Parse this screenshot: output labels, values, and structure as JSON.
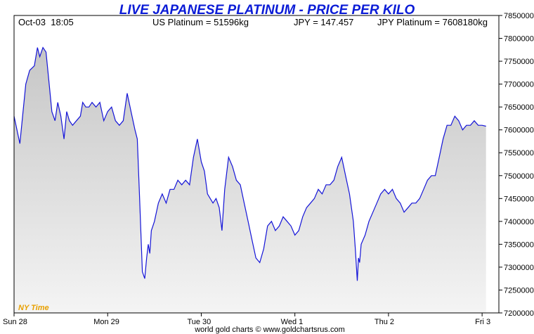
{
  "colors": {
    "title": "#0a1bd6",
    "line": "#1414d8",
    "ny_label": "#e8a000",
    "fill_top": "#c6c6c6",
    "fill_bottom": "#f4f4f4",
    "frame": "#000000"
  },
  "header": {
    "title": "LIVE JAPANESE PLATINUM - PRICE PER KILO",
    "datetime": "Oct-03  18:05",
    "us_platinum": "US Platinum = 51596kg",
    "jpy_rate": "JPY = 147.457",
    "jpy_platinum": "JPY Platinum = 7608180kg"
  },
  "footer": {
    "credit": "world gold charts © www.goldchartsrus.com",
    "ny_time": "NY Time"
  },
  "chart_data": {
    "type": "line",
    "title": "LIVE JAPANESE PLATINUM - PRICE PER KILO",
    "xlabel": "",
    "ylabel": "",
    "ylim": [
      7200000,
      7850000
    ],
    "xlim": [
      0,
      124.3
    ],
    "grid": false,
    "y_ticks": [
      7200000,
      7250000,
      7300000,
      7350000,
      7400000,
      7450000,
      7500000,
      7550000,
      7600000,
      7650000,
      7700000,
      7750000,
      7800000,
      7850000
    ],
    "y_tick_labels": [
      "7200000",
      "7250000",
      "7300000",
      "7350000",
      "7400000",
      "7450000",
      "7500000",
      "7550000",
      "7600000",
      "7650000",
      "7700000",
      "7750000",
      "7800000",
      "7850000"
    ],
    "x_ticks": [
      0,
      24,
      48,
      72,
      96,
      120
    ],
    "x_tick_labels": [
      "Sun 28",
      "Mon 29",
      "Tue 30",
      "Wed 1",
      "Thu 2",
      "Fri 3"
    ],
    "series": [
      {
        "x": [
          0,
          1.5,
          2.3,
          3,
          4,
          5.2,
          6,
          6.6,
          7.4,
          8.2,
          9,
          9.7,
          10.5,
          11.2,
          12,
          12.8,
          13.5,
          14.2,
          15,
          16,
          17,
          17.6,
          18.4,
          19.2,
          20,
          21,
          22,
          23,
          24,
          25,
          26,
          27,
          28,
          29,
          30,
          31,
          31.6,
          32.2,
          32.9,
          33.5,
          34,
          34.4,
          34.8,
          35.2,
          35.6,
          36,
          37,
          38,
          39,
          40,
          41,
          42,
          43,
          44,
          45,
          46,
          47,
          48,
          48.8,
          49.6,
          50.3,
          51,
          51.8,
          52.6,
          53.3,
          54,
          55,
          56,
          57,
          58,
          59,
          60,
          61,
          62,
          63,
          64,
          65,
          66,
          67,
          68,
          69,
          70,
          71,
          72,
          73,
          74,
          75,
          76,
          77,
          78,
          79,
          80,
          81,
          82,
          83,
          84,
          85,
          86,
          87,
          87.5,
          88,
          88.3,
          88.6,
          89,
          89.5,
          90,
          91,
          92,
          93,
          94,
          95,
          96,
          97,
          98,
          99,
          100,
          101,
          102,
          103,
          104,
          105,
          106,
          107,
          108,
          109,
          110,
          111,
          112,
          113,
          114,
          115,
          116,
          117,
          118,
          119,
          120,
          121
        ],
        "values": [
          7630000,
          7570000,
          7640000,
          7700000,
          7730000,
          7740000,
          7780000,
          7760000,
          7780000,
          7770000,
          7700000,
          7640000,
          7620000,
          7660000,
          7630000,
          7580000,
          7640000,
          7620000,
          7610000,
          7620000,
          7630000,
          7660000,
          7650000,
          7650000,
          7660000,
          7650000,
          7660000,
          7620000,
          7640000,
          7650000,
          7620000,
          7610000,
          7620000,
          7680000,
          7640000,
          7600000,
          7580000,
          7450000,
          7290000,
          7275000,
          7320000,
          7350000,
          7330000,
          7380000,
          7390000,
          7400000,
          7440000,
          7460000,
          7440000,
          7470000,
          7470000,
          7490000,
          7480000,
          7490000,
          7480000,
          7540000,
          7580000,
          7530000,
          7510000,
          7460000,
          7450000,
          7440000,
          7450000,
          7430000,
          7380000,
          7470000,
          7540000,
          7520000,
          7490000,
          7480000,
          7440000,
          7400000,
          7360000,
          7320000,
          7310000,
          7340000,
          7390000,
          7400000,
          7380000,
          7390000,
          7410000,
          7400000,
          7390000,
          7370000,
          7380000,
          7410000,
          7430000,
          7440000,
          7450000,
          7470000,
          7460000,
          7480000,
          7480000,
          7490000,
          7520000,
          7540000,
          7500000,
          7460000,
          7400000,
          7340000,
          7270000,
          7320000,
          7310000,
          7350000,
          7360000,
          7370000,
          7400000,
          7420000,
          7440000,
          7460000,
          7470000,
          7460000,
          7470000,
          7450000,
          7440000,
          7420000,
          7430000,
          7440000,
          7440000,
          7450000,
          7470000,
          7490000,
          7500000,
          7500000,
          7540000,
          7580000,
          7610000,
          7610000,
          7630000,
          7620000,
          7600000,
          7610000,
          7610000,
          7620000,
          7610000,
          7610000,
          7608000
        ]
      }
    ]
  }
}
